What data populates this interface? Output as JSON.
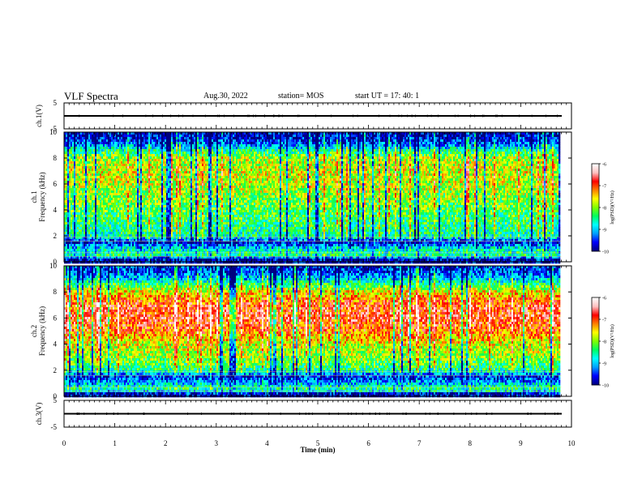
{
  "header": {
    "title": "VLF Spectra",
    "date": "Aug.30, 2022",
    "station": "station= MOS",
    "start_ut": "start  UT  =   17: 40: 1"
  },
  "colors": {
    "colormap": [
      "#000080",
      "#0000ff",
      "#00a0ff",
      "#00ffff",
      "#00ff60",
      "#80ff00",
      "#ffff00",
      "#ff8000",
      "#ff0000",
      "#ffc0c0",
      "#ffffff"
    ],
    "trace": "#000000"
  },
  "chart_data": [
    {
      "type": "line",
      "panel": "ch1-waveform",
      "ylabel": "ch.1(V)",
      "ylim": [
        -5,
        5
      ],
      "yticks": [
        "5",
        "-5"
      ],
      "xlim": [
        0,
        10
      ],
      "series": [
        {
          "values": [
            0,
            0,
            0,
            0,
            0,
            0,
            0,
            0,
            0,
            0
          ]
        }
      ]
    },
    {
      "type": "heatmap",
      "panel": "ch1-spectrogram",
      "ylabel": "ch.1\nFrequency (kHz)",
      "ylim": [
        0,
        10
      ],
      "yticks": [
        "0",
        "2",
        "4",
        "6",
        "8",
        "10"
      ],
      "xlim": [
        0,
        9.8
      ],
      "colorbar": {
        "label": "log(PSD)(V²/Hz)",
        "range": [
          -10,
          -6
        ],
        "ticks": [
          "-6",
          "-7",
          "-8",
          "-9",
          "-10"
        ]
      },
      "frequency_profile": [
        {
          "f": 0.2,
          "log_psd": -9.8
        },
        {
          "f": 0.5,
          "log_psd": -8.5
        },
        {
          "f": 1.0,
          "log_psd": -8.8
        },
        {
          "f": 1.5,
          "log_psd": -9.7
        },
        {
          "f": 2.0,
          "log_psd": -8.6
        },
        {
          "f": 3.0,
          "log_psd": -8.4
        },
        {
          "f": 4.0,
          "log_psd": -8.2
        },
        {
          "f": 5.0,
          "log_psd": -8.0
        },
        {
          "f": 6.0,
          "log_psd": -7.8
        },
        {
          "f": 7.0,
          "log_psd": -7.7
        },
        {
          "f": 8.0,
          "log_psd": -7.9
        },
        {
          "f": 8.6,
          "log_psd": -8.6
        },
        {
          "f": 9.2,
          "log_psd": -9.5
        },
        {
          "f": 9.8,
          "log_psd": -9.8
        }
      ]
    },
    {
      "type": "heatmap",
      "panel": "ch2-spectrogram",
      "ylabel": "ch.2\nFrequency (kHz)",
      "ylim": [
        0,
        10
      ],
      "yticks": [
        "0",
        "2",
        "4",
        "6",
        "8",
        "10"
      ],
      "xlim": [
        0,
        9.8
      ],
      "colorbar": {
        "label": "log(PSD)(V²/Hz)",
        "range": [
          -10,
          -6
        ],
        "ticks": [
          "-6",
          "-7",
          "-8",
          "-9",
          "-10"
        ]
      },
      "frequency_profile": [
        {
          "f": 0.2,
          "log_psd": -9.8
        },
        {
          "f": 0.5,
          "log_psd": -8.4
        },
        {
          "f": 1.0,
          "log_psd": -9.0
        },
        {
          "f": 1.5,
          "log_psd": -9.6
        },
        {
          "f": 2.0,
          "log_psd": -8.5
        },
        {
          "f": 3.0,
          "log_psd": -8.0
        },
        {
          "f": 4.0,
          "log_psd": -7.7
        },
        {
          "f": 5.0,
          "log_psd": -7.1
        },
        {
          "f": 6.0,
          "log_psd": -6.8
        },
        {
          "f": 7.0,
          "log_psd": -6.9
        },
        {
          "f": 8.0,
          "log_psd": -7.6
        },
        {
          "f": 8.6,
          "log_psd": -8.4
        },
        {
          "f": 9.2,
          "log_psd": -9.2
        },
        {
          "f": 9.8,
          "log_psd": -9.6
        }
      ]
    },
    {
      "type": "line",
      "panel": "ch3-waveform",
      "ylabel": "ch.3(V)",
      "ylim": [
        -5,
        5
      ],
      "yticks": [
        "5",
        "-5"
      ],
      "xlim": [
        0,
        10
      ],
      "series": [
        {
          "values": [
            0,
            0,
            0,
            0,
            0,
            0,
            0,
            0,
            0,
            0
          ]
        }
      ]
    }
  ],
  "xaxis": {
    "label": "Time  (min)",
    "ticks": [
      "0",
      "1",
      "2",
      "3",
      "4",
      "5",
      "6",
      "7",
      "8",
      "9",
      "10"
    ]
  }
}
